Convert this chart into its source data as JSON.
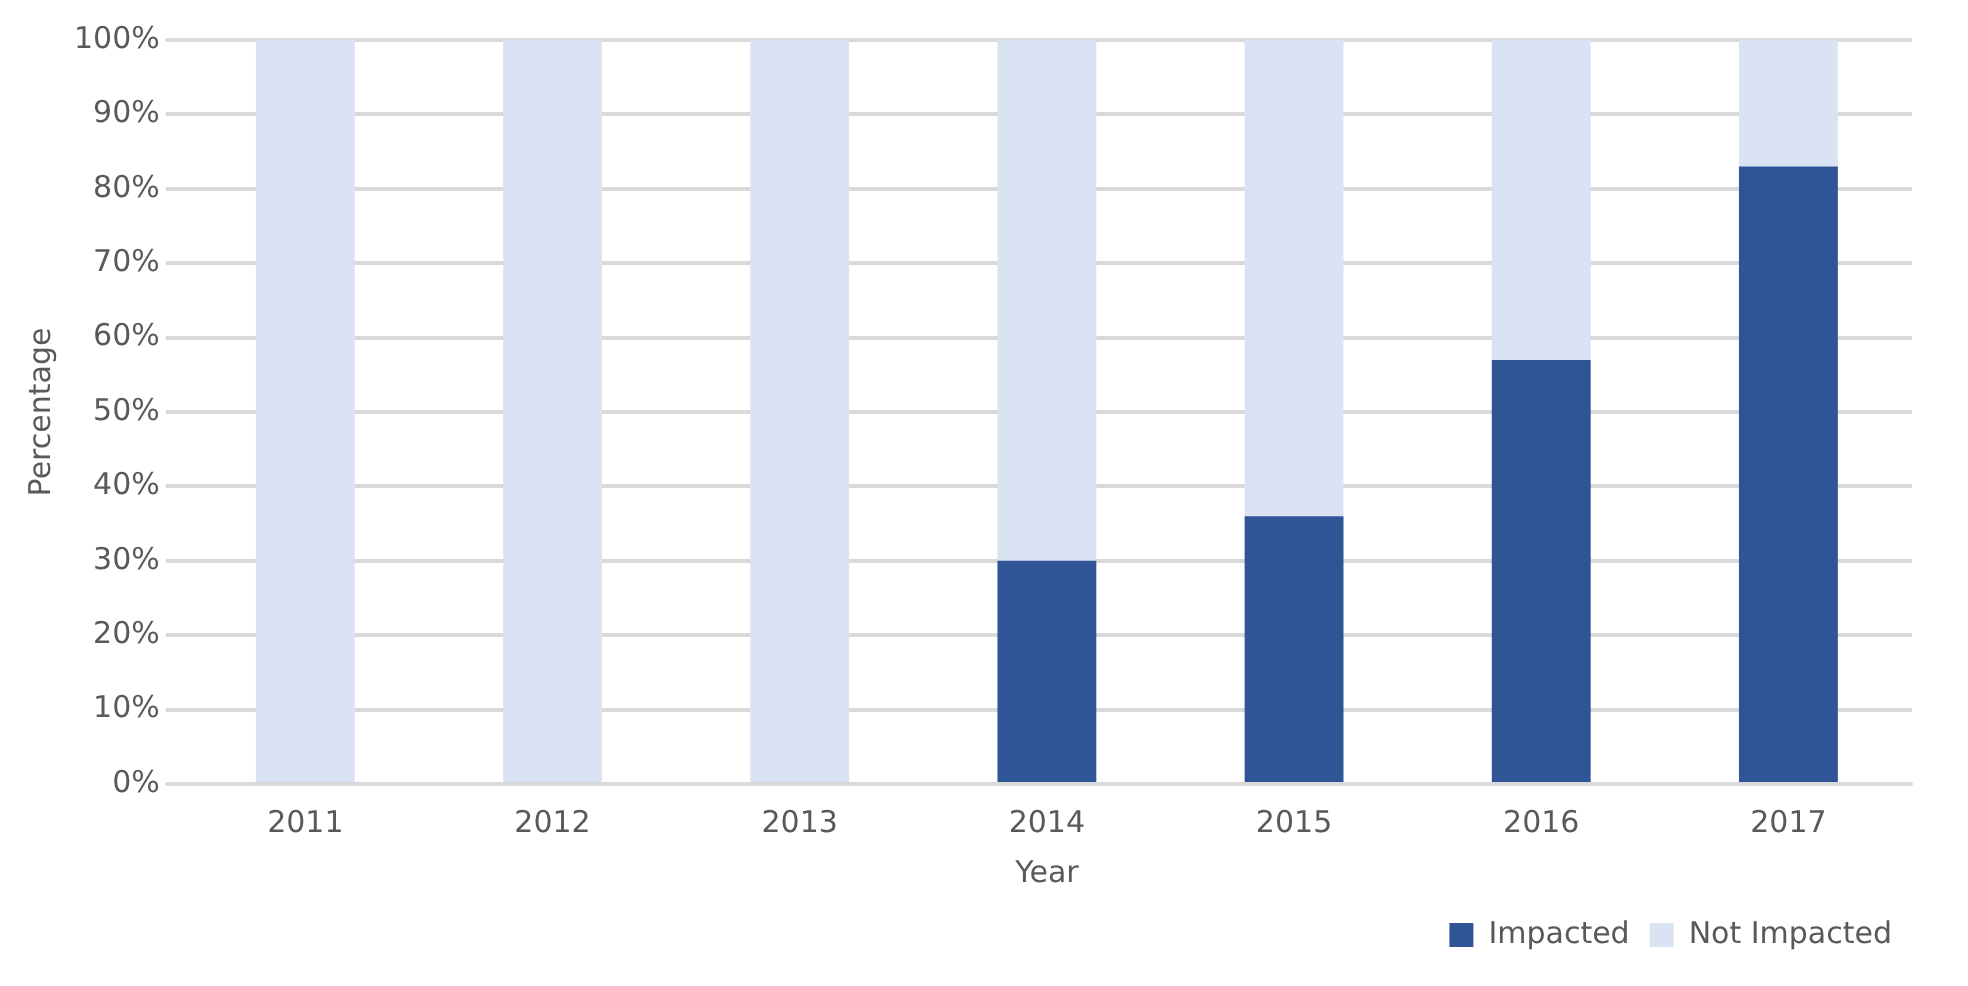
{
  "chart_data": {
    "type": "bar",
    "stacked": true,
    "xlabel": "Year",
    "ylabel": "Percentage",
    "categories": [
      "2011",
      "2012",
      "2013",
      "2014",
      "2015",
      "2016",
      "2017"
    ],
    "series": [
      {
        "name": "Impacted",
        "color": "#2f5597",
        "values": [
          0,
          0,
          0,
          30,
          36,
          57,
          83
        ]
      },
      {
        "name": "Not Impacted",
        "color": "#dae3f3",
        "values": [
          100,
          100,
          100,
          70,
          64,
          43,
          17
        ]
      }
    ],
    "ylim": [
      0,
      100
    ],
    "yticks": [
      {
        "value": 0,
        "label": "0%"
      },
      {
        "value": 10,
        "label": "10%"
      },
      {
        "value": 20,
        "label": "20%"
      },
      {
        "value": 30,
        "label": "30%"
      },
      {
        "value": 40,
        "label": "40%"
      },
      {
        "value": 50,
        "label": "50%"
      },
      {
        "value": 60,
        "label": "60%"
      },
      {
        "value": 70,
        "label": "70%"
      },
      {
        "value": 80,
        "label": "80%"
      },
      {
        "value": 90,
        "label": "90%"
      },
      {
        "value": 100,
        "label": "100%"
      }
    ],
    "grid": "y",
    "legend": "bottom right"
  }
}
